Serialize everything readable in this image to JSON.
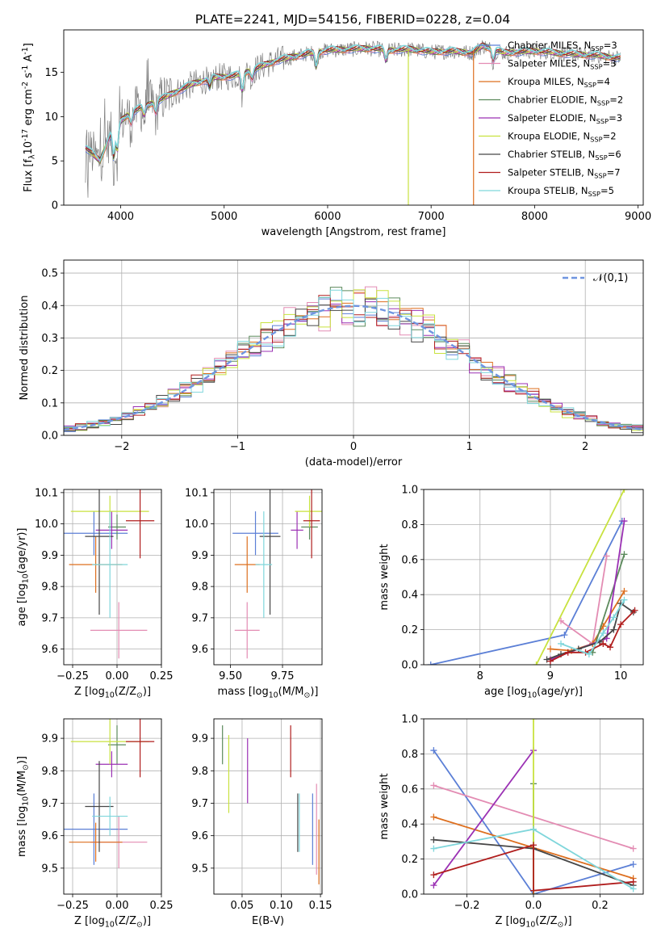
{
  "figure_title": "PLATE=2241, MJD=54156, FIBERID=0228, z=0.04",
  "colors": {
    "Chabrier MILES": "#5b7fd6",
    "Salpeter MILES": "#e38cb3",
    "Kroupa MILES": "#dd6f1f",
    "Chabrier ELODIE": "#5c8a5c",
    "Salpeter ELODIE": "#9b31b4",
    "Kroupa ELODIE": "#c8e23f",
    "Chabrier STELIB": "#474747",
    "Salpeter STELIB": "#b01d1d",
    "Kroupa STELIB": "#7fd6db",
    "data": "#7f7f7f",
    "normal": "#6f95e0"
  },
  "chart_data": [
    {
      "id": "spectrum",
      "type": "line",
      "xlabel": "wavelength [Angstrom, rest frame]",
      "ylabel": "Flux [f$_\\lambda$10$^{-17}$ erg cm$^{-2}$ s$^{-1}$ A$^{-1}$]",
      "xlim": [
        3450,
        9050
      ],
      "ylim": [
        0,
        19.8
      ],
      "xticks": [
        4000,
        5000,
        6000,
        7000,
        8000,
        9000
      ],
      "yticks": [
        0,
        5,
        10,
        15
      ],
      "grid": false,
      "legend_position": "top-right",
      "continuum": {
        "x": [
          3660,
          3800,
          3900,
          4000,
          4100,
          4200,
          4300,
          4400,
          4500,
          4700,
          4900,
          5100,
          5300,
          5500,
          5800,
          6000,
          6200,
          6400,
          6600,
          6800,
          7000,
          7200,
          7400,
          7500,
          7700,
          8000,
          8300,
          8600,
          8830
        ],
        "y": [
          6.5,
          5.0,
          8.0,
          9.5,
          10.5,
          11.0,
          11.5,
          12.0,
          12.6,
          13.7,
          14.4,
          14.6,
          15.4,
          16.3,
          17.1,
          17.5,
          17.6,
          17.7,
          17.5,
          17.6,
          17.3,
          17.4,
          17.2,
          18.0,
          17.2,
          17.4,
          17.1,
          16.9,
          16.6
        ]
      },
      "series": [
        {
          "name": "Chabrier MILES, N$_{SSP}$=3",
          "key": "Chabrier MILES"
        },
        {
          "name": "Salpeter MILES, N$_{SSP}$=3",
          "key": "Salpeter MILES"
        },
        {
          "name": "Kroupa MILES, N$_{SSP}$=4",
          "key": "Kroupa MILES"
        },
        {
          "name": "Chabrier ELODIE, N$_{SSP}$=2",
          "key": "Chabrier ELODIE"
        },
        {
          "name": "Salpeter ELODIE, N$_{SSP}$=3",
          "key": "Salpeter ELODIE"
        },
        {
          "name": "Kroupa ELODIE, N$_{SSP}$=2",
          "key": "Kroupa ELODIE"
        },
        {
          "name": "Chabrier STELIB, N$_{SSP}$=6",
          "key": "Chabrier STELIB"
        },
        {
          "name": "Salpeter STELIB, N$_{SSP}$=7",
          "key": "Salpeter STELIB"
        },
        {
          "name": "Kroupa STELIB, N$_{SSP}$=5",
          "key": "Kroupa STELIB"
        }
      ]
    },
    {
      "id": "residuals",
      "type": "line",
      "xlabel": "(data-model)/error",
      "ylabel": "Normed distribution",
      "xlim": [
        -2.5,
        2.5
      ],
      "ylim": [
        0,
        0.54
      ],
      "xticks": [
        -2,
        -1,
        0,
        1,
        2
      ],
      "yticks": [
        0.0,
        0.1,
        0.2,
        0.3,
        0.4,
        0.5
      ],
      "grid": true,
      "legend_position": "top-right",
      "legend_label": "$\\mathcal{N}(0,1)$",
      "bins": {
        "start": -2.5,
        "width": 0.1,
        "count": 50
      }
    },
    {
      "id": "age_vs_Z",
      "type": "scatter",
      "xlabel": "Z [log$_{10}$(Z/Z$_\\odot$)]",
      "ylabel": "age  [log$_{10}$(age/yr)]",
      "xlim": [
        -0.3,
        0.25
      ],
      "ylim": [
        9.55,
        10.11
      ],
      "xticks": [
        -0.25,
        0.0,
        0.25
      ],
      "yticks": [
        9.6,
        9.7,
        9.8,
        9.9,
        10.0,
        10.1
      ],
      "grid": true,
      "points": [
        {
          "key": "Chabrier MILES",
          "x": -0.13,
          "xerr": 0.19,
          "y": 9.97,
          "yerr": 0.07
        },
        {
          "key": "Salpeter MILES",
          "x": 0.01,
          "xerr": 0.16,
          "y": 9.66,
          "yerr": 0.09
        },
        {
          "key": "Kroupa MILES",
          "x": -0.12,
          "xerr": 0.15,
          "y": 9.87,
          "yerr": 0.09
        },
        {
          "key": "Chabrier ELODIE",
          "x": 0.0,
          "xerr": 0.05,
          "y": 9.99,
          "yerr": 0.04
        },
        {
          "key": "Salpeter ELODIE",
          "x": -0.03,
          "xerr": 0.09,
          "y": 9.98,
          "yerr": 0.06
        },
        {
          "key": "Kroupa ELODIE",
          "x": -0.04,
          "xerr": 0.22,
          "y": 10.04,
          "yerr": 0.05
        },
        {
          "key": "Chabrier STELIB",
          "x": -0.1,
          "xerr": 0.08,
          "y": 9.96,
          "yerr": 0.25
        },
        {
          "key": "Salpeter STELIB",
          "x": 0.13,
          "xerr": 0.08,
          "y": 10.01,
          "yerr": 0.12
        },
        {
          "key": "Kroupa STELIB",
          "x": -0.04,
          "xerr": 0.1,
          "y": 9.87,
          "yerr": 0.17
        }
      ]
    },
    {
      "id": "age_vs_mass",
      "type": "scatter",
      "xlabel": "mass [log$_{10}$(M/M$_\\odot$)]",
      "ylabel": "",
      "xlim": [
        9.42,
        9.94
      ],
      "ylim": [
        9.55,
        10.11
      ],
      "xticks": [
        9.5,
        9.75
      ],
      "yticks": [
        9.6,
        9.7,
        9.8,
        9.9,
        10.0,
        10.1
      ],
      "grid": true,
      "points": [
        {
          "key": "Chabrier MILES",
          "x": 9.62,
          "xerr": 0.11,
          "y": 9.97,
          "yerr": 0.07
        },
        {
          "key": "Salpeter MILES",
          "x": 9.58,
          "xerr": 0.06,
          "y": 9.66,
          "yerr": 0.09
        },
        {
          "key": "Kroupa MILES",
          "x": 9.58,
          "xerr": 0.06,
          "y": 9.87,
          "yerr": 0.09
        },
        {
          "key": "Chabrier ELODIE",
          "x": 9.88,
          "xerr": 0.04,
          "y": 9.99,
          "yerr": 0.04
        },
        {
          "key": "Salpeter ELODIE",
          "x": 9.82,
          "xerr": 0.03,
          "y": 9.98,
          "yerr": 0.06
        },
        {
          "key": "Kroupa ELODIE",
          "x": 9.88,
          "xerr": 0.07,
          "y": 10.04,
          "yerr": 0.05
        },
        {
          "key": "Chabrier STELIB",
          "x": 9.69,
          "xerr": 0.05,
          "y": 9.96,
          "yerr": 0.25
        },
        {
          "key": "Salpeter STELIB",
          "x": 9.89,
          "xerr": 0.04,
          "y": 10.01,
          "yerr": 0.12
        },
        {
          "key": "Kroupa STELIB",
          "x": 9.66,
          "xerr": 0.04,
          "y": 9.87,
          "yerr": 0.17
        }
      ]
    },
    {
      "id": "massweight_vs_age",
      "type": "line",
      "xlabel": "age  [log$_{10}$(age/yr)]",
      "ylabel": "mass weight",
      "xlim": [
        7.2,
        10.32
      ],
      "ylim": [
        0,
        1.0
      ],
      "xticks": [
        8,
        9,
        10
      ],
      "yticks": [
        0.0,
        0.2,
        0.4,
        0.6,
        0.8,
        1.0
      ],
      "grid": true,
      "series": [
        {
          "key": "Chabrier MILES",
          "x": [
            7.3,
            9.2,
            10.02
          ],
          "y": [
            0.0,
            0.17,
            0.82
          ]
        },
        {
          "key": "Salpeter MILES",
          "x": [
            9.15,
            9.6,
            9.8
          ],
          "y": [
            0.25,
            0.12,
            0.62
          ]
        },
        {
          "key": "Kroupa MILES",
          "x": [
            9.0,
            9.3,
            9.6,
            9.75,
            10.05
          ],
          "y": [
            0.09,
            0.08,
            0.12,
            0.22,
            0.42
          ]
        },
        {
          "key": "Chabrier ELODIE",
          "x": [
            9.6,
            10.05
          ],
          "y": [
            0.07,
            0.63
          ]
        },
        {
          "key": "Salpeter ELODIE",
          "x": [
            9.0,
            9.8,
            10.05
          ],
          "y": [
            0.03,
            0.15,
            0.82
          ]
        },
        {
          "key": "Kroupa ELODIE",
          "x": [
            8.8,
            10.05
          ],
          "y": [
            0.0,
            1.0
          ]
        },
        {
          "key": "Chabrier STELIB",
          "x": [
            8.95,
            9.15,
            9.4,
            9.7,
            9.9,
            10.0,
            10.18
          ],
          "y": [
            0.03,
            0.06,
            0.09,
            0.13,
            0.2,
            0.35,
            0.3
          ]
        },
        {
          "key": "Salpeter STELIB",
          "x": [
            9.0,
            9.25,
            9.5,
            9.75,
            9.85,
            10.0,
            10.2
          ],
          "y": [
            0.02,
            0.07,
            0.07,
            0.12,
            0.1,
            0.23,
            0.31
          ]
        },
        {
          "key": "Kroupa STELIB",
          "x": [
            9.15,
            9.55,
            9.75,
            9.9,
            10.05
          ],
          "y": [
            0.12,
            0.06,
            0.18,
            0.27,
            0.37
          ]
        }
      ]
    },
    {
      "id": "mass_vs_Z",
      "type": "scatter",
      "xlabel": "Z [log$_{10}$(Z/Z$_\\odot$)]",
      "ylabel": "mass [log$_{10}$(M/M$_\\odot$)]",
      "xlim": [
        -0.3,
        0.25
      ],
      "ylim": [
        9.42,
        9.96
      ],
      "xticks": [
        -0.25,
        0.0,
        0.25
      ],
      "yticks": [
        9.5,
        9.6,
        9.7,
        9.8,
        9.9
      ],
      "grid": true,
      "points": [
        {
          "key": "Chabrier MILES",
          "x": -0.13,
          "xerr": 0.19,
          "y": 9.62,
          "yerr": 0.11
        },
        {
          "key": "Salpeter MILES",
          "x": 0.01,
          "xerr": 0.16,
          "y": 9.58,
          "yerr": 0.08
        },
        {
          "key": "Kroupa MILES",
          "x": -0.12,
          "xerr": 0.15,
          "y": 9.58,
          "yerr": 0.06
        },
        {
          "key": "Chabrier ELODIE",
          "x": 0.0,
          "xerr": 0.05,
          "y": 9.88,
          "yerr": 0.06
        },
        {
          "key": "Salpeter ELODIE",
          "x": -0.03,
          "xerr": 0.09,
          "y": 9.82,
          "yerr": 0.04
        },
        {
          "key": "Kroupa ELODIE",
          "x": -0.04,
          "xerr": 0.22,
          "y": 9.89,
          "yerr": 0.07
        },
        {
          "key": "Chabrier STELIB",
          "x": -0.1,
          "xerr": 0.08,
          "y": 9.69,
          "yerr": 0.14
        },
        {
          "key": "Salpeter STELIB",
          "x": 0.13,
          "xerr": 0.08,
          "y": 9.89,
          "yerr": 0.11
        },
        {
          "key": "Kroupa STELIB",
          "x": -0.04,
          "xerr": 0.1,
          "y": 9.66,
          "yerr": 0.06
        }
      ]
    },
    {
      "id": "mass_vs_ebv",
      "type": "scatter",
      "xlabel": "E(B-V)",
      "ylabel": "",
      "xlim": [
        0.014,
        0.152
      ],
      "ylim": [
        9.42,
        9.96
      ],
      "xticks": [
        0.05,
        0.1,
        0.15
      ],
      "yticks": [
        9.5,
        9.6,
        9.7,
        9.8,
        9.9
      ],
      "grid": true,
      "points": [
        {
          "key": "Chabrier MILES",
          "x": 0.14,
          "xerr": 0.0,
          "y": 9.62,
          "yerr": 0.11
        },
        {
          "key": "Salpeter MILES",
          "x": 0.145,
          "xerr": 0.0,
          "y": 9.62,
          "yerr": 0.14
        },
        {
          "key": "Kroupa MILES",
          "x": 0.148,
          "xerr": 0.0,
          "y": 9.55,
          "yerr": 0.1
        },
        {
          "key": "Chabrier ELODIE",
          "x": 0.025,
          "xerr": 0.0,
          "y": 9.88,
          "yerr": 0.06
        },
        {
          "key": "Salpeter ELODIE",
          "x": 0.057,
          "xerr": 0.0,
          "y": 9.8,
          "yerr": 0.1
        },
        {
          "key": "Kroupa ELODIE",
          "x": 0.033,
          "xerr": 0.0,
          "y": 9.79,
          "yerr": 0.12
        },
        {
          "key": "Chabrier STELIB",
          "x": 0.121,
          "xerr": 0.0,
          "y": 9.64,
          "yerr": 0.09
        },
        {
          "key": "Salpeter STELIB",
          "x": 0.112,
          "xerr": 0.0,
          "y": 9.86,
          "yerr": 0.08
        },
        {
          "key": "Kroupa STELIB",
          "x": 0.123,
          "xerr": 0.0,
          "y": 9.64,
          "yerr": 0.09
        }
      ]
    },
    {
      "id": "massweight_vs_Z",
      "type": "line",
      "xlabel": "Z [log$_{10}$(Z/Z$_\\odot$)]",
      "ylabel": "mass weight",
      "xlim": [
        -0.33,
        0.33
      ],
      "ylim": [
        0,
        1.0
      ],
      "xticks": [
        -0.2,
        0.0,
        0.2
      ],
      "yticks": [
        0.0,
        0.2,
        0.4,
        0.6,
        0.8,
        1.0
      ],
      "grid": true,
      "series": [
        {
          "key": "Chabrier MILES",
          "x": [
            -0.3,
            0.0,
            0.3
          ],
          "y": [
            0.82,
            0.0,
            0.17
          ]
        },
        {
          "key": "Salpeter MILES",
          "x": [
            -0.3,
            0.3
          ],
          "y": [
            0.62,
            0.26
          ]
        },
        {
          "key": "Kroupa MILES",
          "x": [
            -0.3,
            0.3
          ],
          "y": [
            0.44,
            0.09
          ]
        },
        {
          "key": "Chabrier ELODIE",
          "x": [
            0.0,
            0.0
          ],
          "y": [
            0.63,
            0.0
          ]
        },
        {
          "key": "Salpeter ELODIE",
          "x": [
            -0.3,
            0.0
          ],
          "y": [
            0.05,
            0.82
          ]
        },
        {
          "key": "Kroupa ELODIE",
          "x": [
            0.0,
            0.0
          ],
          "y": [
            1.0,
            0.0
          ]
        },
        {
          "key": "Chabrier STELIB",
          "x": [
            -0.3,
            0.0,
            0.3
          ],
          "y": [
            0.31,
            0.26,
            0.05
          ]
        },
        {
          "key": "Salpeter STELIB",
          "x": [
            -0.3,
            0.0,
            0.0,
            0.3
          ],
          "y": [
            0.11,
            0.28,
            0.02,
            0.07
          ]
        },
        {
          "key": "Kroupa STELIB",
          "x": [
            -0.3,
            0.0,
            0.3
          ],
          "y": [
            0.26,
            0.37,
            0.03
          ]
        }
      ]
    }
  ]
}
